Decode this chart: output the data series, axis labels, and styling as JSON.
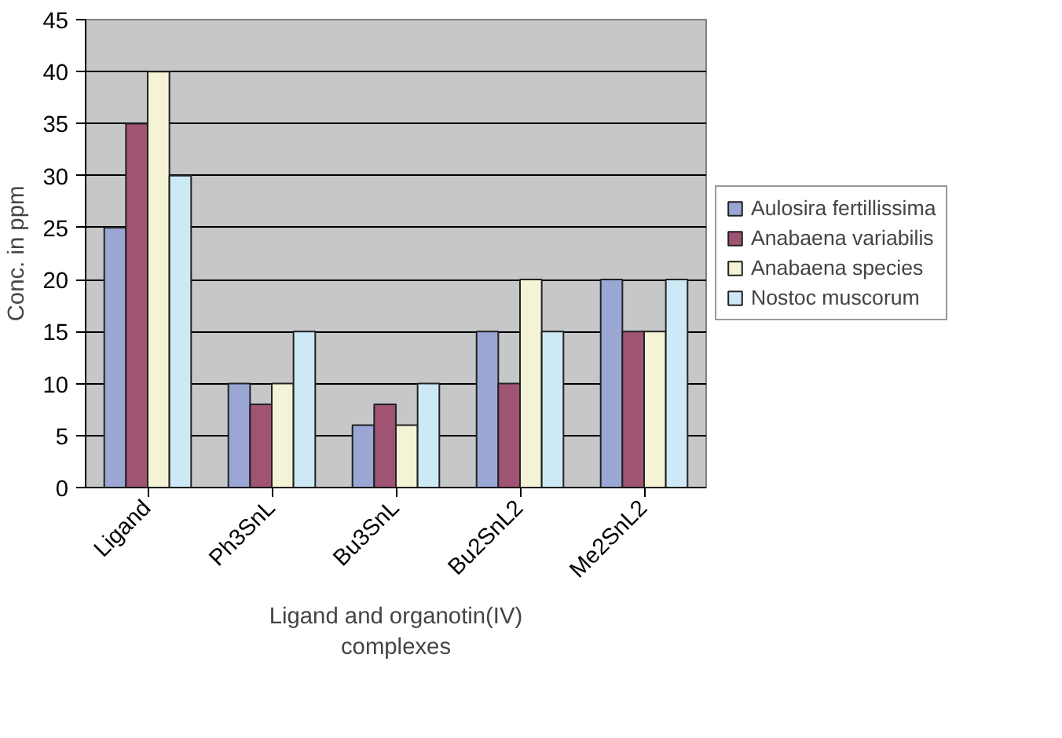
{
  "chart_data": {
    "type": "bar",
    "xlabel": "Ligand and organotin(IV) complexes",
    "ylabel": "Conc. in ppm",
    "categories": [
      "Ligand",
      "Ph3SnL",
      "Bu3SnL",
      "Bu2SnL2",
      "Me2SnL2"
    ],
    "series": [
      {
        "name": "Aulosira fertillissima",
        "color": "#9aa6d4",
        "values": [
          25,
          10,
          6,
          15,
          20
        ]
      },
      {
        "name": "Anabaena variabilis",
        "color": "#a05474",
        "values": [
          35,
          8,
          8,
          10,
          15
        ]
      },
      {
        "name": "Anabaena species",
        "color": "#f5f3d6",
        "values": [
          40,
          10,
          6,
          20,
          15
        ]
      },
      {
        "name": "Nostoc muscorum",
        "color": "#cde9f5",
        "values": [
          30,
          15,
          10,
          15,
          20
        ]
      }
    ],
    "ylim": [
      0,
      45
    ],
    "yticks": [
      0,
      5,
      10,
      15,
      20,
      25,
      30,
      35,
      40,
      45
    ],
    "grid": "y",
    "legend": "right"
  }
}
